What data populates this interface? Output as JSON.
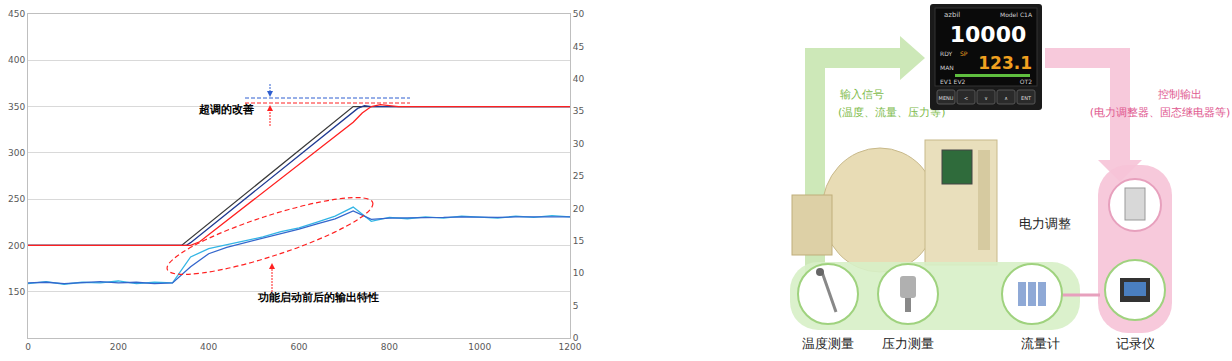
{
  "chart_data": {
    "type": "line",
    "xlim": [
      0,
      1200
    ],
    "xticks": [
      0,
      200,
      400,
      600,
      800,
      1000,
      1200
    ],
    "ylim": [
      100,
      450
    ],
    "yticks": [
      150,
      200,
      250,
      300,
      350,
      400,
      450
    ],
    "y2lim": [
      0,
      50
    ],
    "y2ticks": [
      0,
      5,
      10,
      15,
      20,
      25,
      30,
      35,
      40,
      45,
      50
    ],
    "grid": true,
    "annotations": [
      {
        "text": "超调的改善"
      },
      {
        "text": "功能启动前后的输出特性"
      }
    ],
    "series": [
      {
        "color": "#3a3a3a",
        "line_style": "solid",
        "x": [
          0,
          340,
          720,
          1200
        ],
        "values": [
          200,
          200,
          350,
          350
        ]
      },
      {
        "color": "#1f3a93",
        "line_style": "solid",
        "x": [
          0,
          350,
          360,
          730,
          745,
          760,
          800,
          1200
        ],
        "values": [
          200,
          200,
          203,
          348,
          351,
          350,
          350,
          350
        ]
      },
      {
        "color": "#ff2020",
        "line_style": "solid",
        "x": [
          0,
          360,
          380,
          720,
          740,
          760,
          780,
          820,
          1200
        ],
        "values": [
          200,
          200,
          204,
          333,
          343,
          350,
          352,
          350,
          350
        ]
      },
      {
        "color": "#33b5e5",
        "line_style": "solid",
        "axis": "y2",
        "x": [
          0,
          40,
          80,
          120,
          160,
          200,
          240,
          280,
          320,
          360,
          400,
          440,
          480,
          520,
          560,
          600,
          640,
          680,
          720,
          760,
          800,
          840,
          880,
          920,
          960,
          1000,
          1040,
          1080,
          1120,
          1160,
          1200
        ],
        "values": [
          8.4,
          8.7,
          8.3,
          8.6,
          8.5,
          8.8,
          8.4,
          8.6,
          8.5,
          12.5,
          13.8,
          14.4,
          15.0,
          15.6,
          16.4,
          17.0,
          17.9,
          18.8,
          20.2,
          18.0,
          18.6,
          18.4,
          18.7,
          18.5,
          18.8,
          18.6,
          18.5,
          18.8,
          18.6,
          18.9,
          18.7
        ]
      },
      {
        "color": "#3366cc",
        "line_style": "solid",
        "axis": "y2",
        "x": [
          0,
          40,
          80,
          120,
          160,
          200,
          240,
          280,
          320,
          360,
          400,
          440,
          480,
          520,
          560,
          600,
          640,
          680,
          720,
          760,
          800,
          840,
          880,
          920,
          960,
          1000,
          1040,
          1080,
          1120,
          1160,
          1200
        ],
        "values": [
          8.5,
          8.6,
          8.4,
          8.5,
          8.7,
          8.5,
          8.6,
          8.4,
          8.5,
          11.0,
          13.0,
          14.0,
          14.7,
          15.3,
          16.0,
          16.8,
          17.6,
          18.4,
          19.6,
          18.3,
          18.5,
          18.5,
          18.6,
          18.6,
          18.7,
          18.6,
          18.6,
          18.7,
          18.7,
          18.8,
          18.7
        ]
      }
    ]
  },
  "diagram": {
    "controller": {
      "brand": "azbil",
      "model": "Model C1A",
      "pv": "10000",
      "sp": "123.1",
      "rdy": "RDY",
      "sp_label": "SP",
      "man": "MAN",
      "ev": "EV1 EV2",
      "ot": "OT2",
      "keys": [
        "MENU",
        "<",
        "∨",
        "∧",
        "ENT"
      ]
    },
    "input": {
      "label": "输入信号",
      "detail": "(温度、流量、压力等)"
    },
    "output": {
      "label": "控制输出",
      "detail": "(电力调整器、固态继电器等)"
    },
    "power": "电力调整",
    "devices": [
      "温度测量",
      "压力测量",
      "流量计",
      "记录仪"
    ]
  }
}
